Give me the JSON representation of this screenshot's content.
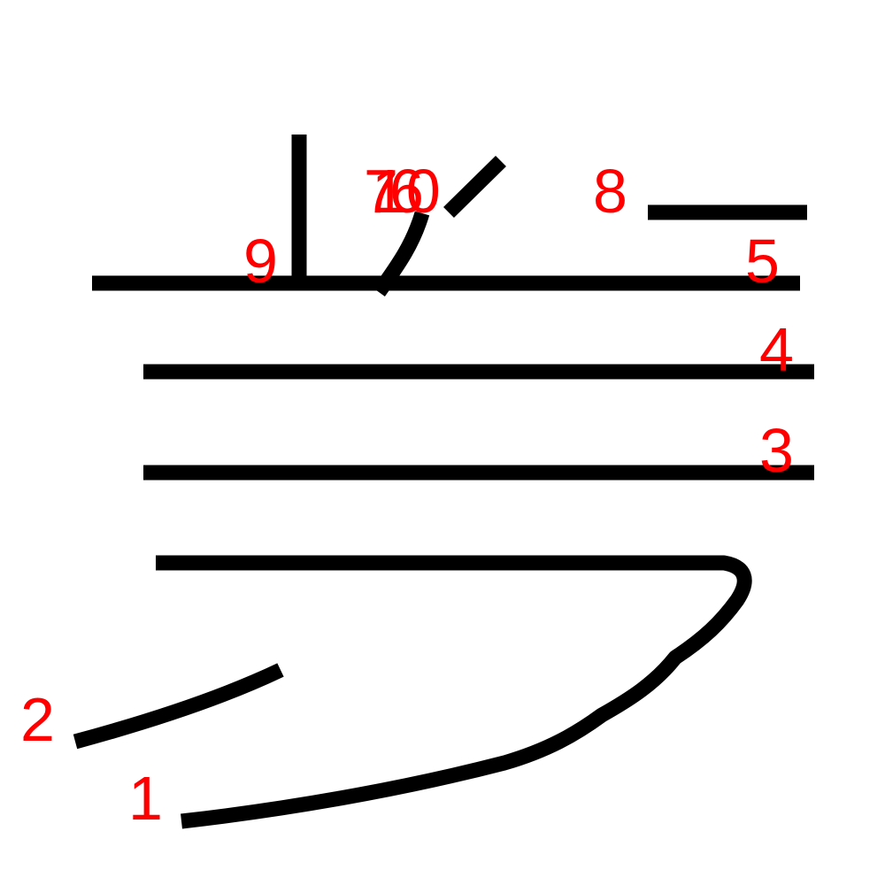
{
  "colors": {
    "stroke": "#000000",
    "number": "#ff0000",
    "background": "#ffffff"
  },
  "strokes": [
    {
      "order": "1",
      "label": "1"
    },
    {
      "order": "2",
      "label": "2"
    },
    {
      "order": "3",
      "label": "3"
    },
    {
      "order": "4",
      "label": "4"
    },
    {
      "order": "5",
      "label": "5"
    },
    {
      "order": "6",
      "label": "6"
    },
    {
      "order": "7",
      "label": "7"
    },
    {
      "order": "8",
      "label": "8"
    },
    {
      "order": "9",
      "label": "9"
    },
    {
      "order": "10",
      "label": "10"
    }
  ]
}
